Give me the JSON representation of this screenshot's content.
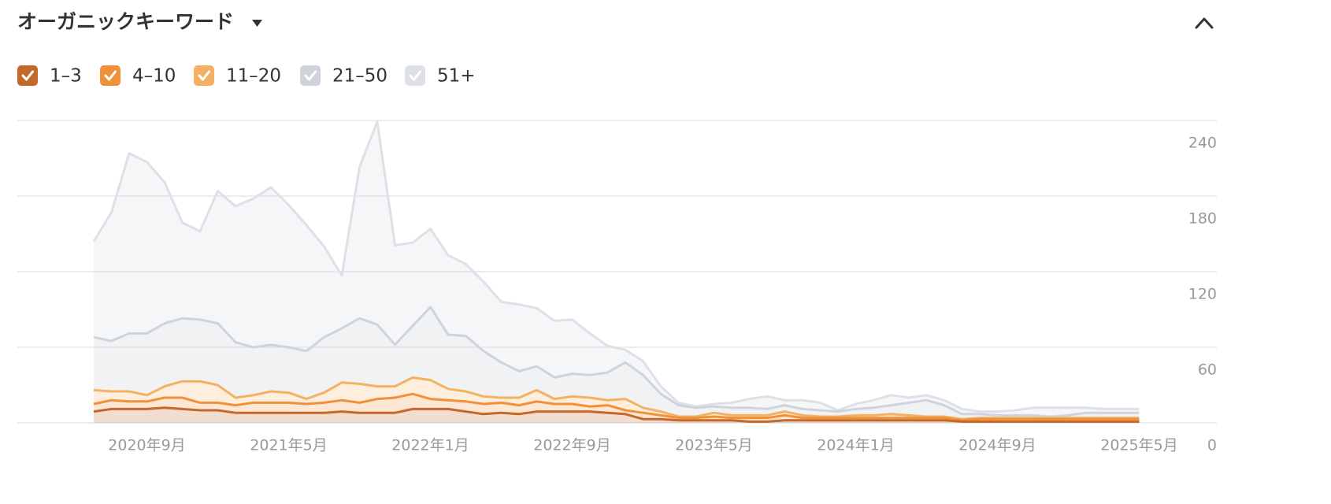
{
  "chart_data": {
    "type": "stacked-area",
    "title": "オーガニックキーワード",
    "x": [
      "2020-06",
      "2020-07",
      "2020-08",
      "2020-09",
      "2020-10",
      "2020-11",
      "2020-12",
      "2021-01",
      "2021-02",
      "2021-03",
      "2021-04",
      "2021-05",
      "2021-06",
      "2021-07",
      "2021-08",
      "2021-09",
      "2021-10",
      "2021-11",
      "2021-12",
      "2022-01",
      "2022-02",
      "2022-03",
      "2022-04",
      "2022-05",
      "2022-06",
      "2022-07",
      "2022-08",
      "2022-09",
      "2022-10",
      "2022-11",
      "2022-12",
      "2023-01",
      "2023-02",
      "2023-03",
      "2023-04",
      "2023-05",
      "2023-06",
      "2023-07",
      "2023-08",
      "2023-09",
      "2023-10",
      "2023-11",
      "2023-12",
      "2024-01",
      "2024-02",
      "2024-03",
      "2024-04",
      "2024-05",
      "2024-06",
      "2024-07",
      "2024-08",
      "2024-09",
      "2024-10",
      "2024-11",
      "2024-12",
      "2025-01",
      "2025-02",
      "2025-03",
      "2025-04",
      "2025-05"
    ],
    "xticks": [
      {
        "value": "2020-09",
        "label": "2020年9月"
      },
      {
        "value": "2021-05",
        "label": "2021年5月"
      },
      {
        "value": "2022-01",
        "label": "2022年1月"
      },
      {
        "value": "2022-09",
        "label": "2022年9月"
      },
      {
        "value": "2023-05",
        "label": "2023年5月"
      },
      {
        "value": "2024-01",
        "label": "2024年1月"
      },
      {
        "value": "2024-09",
        "label": "2024年9月"
      },
      {
        "value": "2025-05",
        "label": "2025年5月"
      }
    ],
    "ylim": [
      0,
      240
    ],
    "yticks": [
      0,
      60,
      120,
      180,
      240
    ],
    "grid": true,
    "series": [
      {
        "name": "1–3",
        "color": "#c4692a",
        "values": [
          9,
          11,
          11,
          11,
          12,
          11,
          10,
          10,
          8,
          8,
          8,
          8,
          8,
          8,
          9,
          8,
          8,
          8,
          11,
          11,
          11,
          9,
          7,
          8,
          7,
          9,
          9,
          9,
          9,
          8,
          7,
          3,
          3,
          2,
          2,
          2,
          2,
          1,
          1,
          2,
          2,
          2,
          2,
          2,
          2,
          2,
          2,
          2,
          2,
          1,
          1,
          1,
          1,
          1,
          1,
          1,
          1,
          1,
          1,
          1
        ]
      },
      {
        "name": "4–10",
        "color": "#f0913a",
        "values": [
          6,
          7,
          6,
          6,
          8,
          9,
          6,
          6,
          6,
          8,
          8,
          8,
          7,
          8,
          9,
          8,
          11,
          12,
          12,
          8,
          7,
          8,
          8,
          8,
          7,
          8,
          6,
          6,
          4,
          6,
          3,
          5,
          3,
          2,
          2,
          3,
          2,
          3,
          3,
          4,
          2,
          2,
          2,
          2,
          2,
          2,
          2,
          2,
          2,
          1,
          2,
          2,
          2,
          2,
          2,
          2,
          2,
          2,
          2,
          2
        ]
      },
      {
        "name": "11–20",
        "color": "#f4b164",
        "values": [
          11,
          7,
          8,
          5,
          9,
          13,
          17,
          14,
          6,
          6,
          9,
          8,
          4,
          8,
          14,
          15,
          10,
          9,
          13,
          15,
          9,
          8,
          6,
          4,
          6,
          9,
          4,
          6,
          7,
          4,
          9,
          4,
          3,
          1,
          1,
          3,
          2,
          2,
          2,
          3,
          2,
          1,
          1,
          2,
          2,
          3,
          2,
          1,
          1,
          1,
          1,
          1,
          1,
          1,
          1,
          1,
          1,
          1,
          1,
          1
        ]
      },
      {
        "name": "21–50",
        "color": "#cfd4dc",
        "values": [
          42,
          40,
          46,
          49,
          50,
          50,
          49,
          49,
          44,
          38,
          37,
          36,
          38,
          44,
          43,
          52,
          49,
          33,
          41,
          58,
          43,
          44,
          36,
          28,
          21,
          19,
          17,
          18,
          18,
          22,
          29,
          26,
          14,
          9,
          7,
          5,
          6,
          6,
          5,
          5,
          5,
          5,
          4,
          5,
          6,
          7,
          10,
          13,
          9,
          4,
          3,
          2,
          2,
          2,
          1,
          2,
          4,
          4,
          4,
          4
        ]
      },
      {
        "name": "51+",
        "color": "#dde1e7",
        "values": [
          76,
          102,
          143,
          136,
          112,
          76,
          70,
          105,
          108,
          118,
          125,
          113,
          100,
          72,
          42,
          120,
          161,
          79,
          66,
          62,
          63,
          57,
          55,
          48,
          53,
          46,
          45,
          43,
          33,
          21,
          10,
          11,
          6,
          2,
          1,
          2,
          4,
          7,
          10,
          4,
          7,
          6,
          1,
          4,
          6,
          8,
          4,
          4,
          4,
          4,
          2,
          3,
          4,
          6,
          7,
          6,
          4,
          3,
          3,
          3
        ]
      }
    ]
  }
}
